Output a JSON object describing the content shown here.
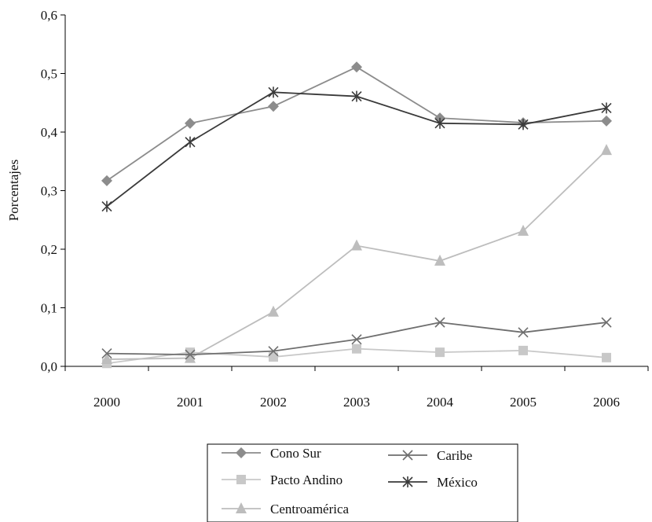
{
  "chart_data": {
    "type": "line",
    "title": "",
    "xlabel": "",
    "ylabel": "Porcentajes",
    "x": [
      "2000",
      "2001",
      "2002",
      "2003",
      "2004",
      "2005",
      "2006"
    ],
    "ylim": [
      0,
      0.6
    ],
    "yticks": [
      0,
      0.1,
      0.2,
      0.3,
      0.4,
      0.5,
      0.6
    ],
    "ytick_labels": [
      "0,0",
      "0,1",
      "0,2",
      "0,3",
      "0,4",
      "0,5",
      "0,6"
    ],
    "grid": false,
    "legend_position": "bottom",
    "series": [
      {
        "name": "Cono Sur",
        "marker": "diamond",
        "color": "#8c8c8c",
        "values": [
          0.317,
          0.415,
          0.444,
          0.511,
          0.424,
          0.416,
          0.419
        ]
      },
      {
        "name": "Pacto Andino",
        "marker": "square",
        "color": "#c8c8c8",
        "values": [
          0.005,
          0.024,
          0.016,
          0.03,
          0.024,
          0.027,
          0.015
        ]
      },
      {
        "name": "Centroamérica",
        "marker": "triangle",
        "color": "#bdbdbd",
        "values": [
          0.012,
          0.014,
          0.093,
          0.206,
          0.18,
          0.231,
          0.369
        ]
      },
      {
        "name": "Caribe",
        "marker": "x",
        "color": "#6e6e6e",
        "values": [
          0.022,
          0.02,
          0.026,
          0.046,
          0.075,
          0.058,
          0.075
        ]
      },
      {
        "name": "México",
        "marker": "star",
        "color": "#3a3a3a",
        "values": [
          0.273,
          0.383,
          0.468,
          0.461,
          0.415,
          0.413,
          0.441
        ]
      }
    ]
  }
}
